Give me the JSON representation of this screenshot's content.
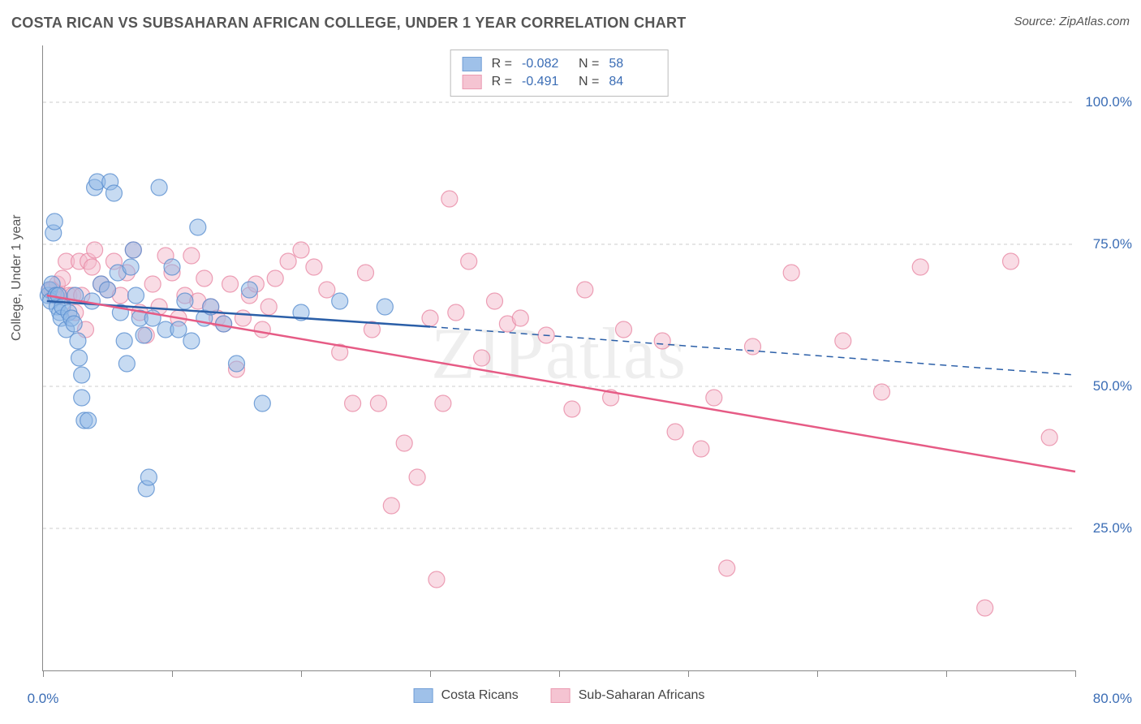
{
  "title": "COSTA RICAN VS SUBSAHARAN AFRICAN COLLEGE, UNDER 1 YEAR CORRELATION CHART",
  "source": "Source: ZipAtlas.com",
  "ylabel": "College, Under 1 year",
  "watermark": "ZIPatlas",
  "chart": {
    "type": "scatter-correlation",
    "background_color": "#ffffff",
    "grid_color": "#cccccc",
    "axis_color": "#888888",
    "label_color": "#555555",
    "tick_label_color": "#3b6db5",
    "xlim": [
      0,
      80
    ],
    "ylim": [
      0,
      110
    ],
    "yticks": [
      25,
      50,
      75,
      100
    ],
    "ytick_labels": [
      "25.0%",
      "50.0%",
      "75.0%",
      "100.0%"
    ],
    "xtick_positions": [
      0,
      10,
      20,
      30,
      40,
      50,
      60,
      70,
      80
    ],
    "xtick_labels_shown": {
      "0": "0.0%",
      "80": "80.0%"
    },
    "marker_radius": 10,
    "marker_opacity": 0.5,
    "marker_stroke_opacity": 0.8,
    "title_fontsize": 18,
    "label_fontsize": 16,
    "tick_fontsize": 17
  },
  "series": [
    {
      "name": "Costa Ricans",
      "color_fill": "#8fb7e6",
      "color_stroke": "#5a8fd0",
      "line_color": "#2b5fa8",
      "R": "-0.082",
      "N": "58",
      "trend_solid": {
        "x1": 0.3,
        "y1": 65,
        "x2": 30,
        "y2": 60.5
      },
      "trend_dash": {
        "x1": 30,
        "y1": 60.5,
        "x2": 80,
        "y2": 52
      },
      "points": [
        [
          0.4,
          66
        ],
        [
          0.5,
          67
        ],
        [
          0.6,
          65
        ],
        [
          0.7,
          68
        ],
        [
          0.8,
          77
        ],
        [
          0.9,
          79
        ],
        [
          1.0,
          66
        ],
        [
          1.1,
          64
        ],
        [
          1.2,
          66
        ],
        [
          1.3,
          63
        ],
        [
          1.4,
          62
        ],
        [
          1.5,
          64
        ],
        [
          1.8,
          60
        ],
        [
          2.0,
          63
        ],
        [
          2.2,
          62
        ],
        [
          2.4,
          61
        ],
        [
          2.5,
          66
        ],
        [
          2.7,
          58
        ],
        [
          2.8,
          55
        ],
        [
          3.0,
          52
        ],
        [
          3.0,
          48
        ],
        [
          3.2,
          44
        ],
        [
          3.5,
          44
        ],
        [
          3.8,
          65
        ],
        [
          4.0,
          85
        ],
        [
          4.2,
          86
        ],
        [
          4.5,
          68
        ],
        [
          5.0,
          67
        ],
        [
          5.2,
          86
        ],
        [
          5.5,
          84
        ],
        [
          5.8,
          70
        ],
        [
          6.0,
          63
        ],
        [
          6.3,
          58
        ],
        [
          6.5,
          54
        ],
        [
          6.8,
          71
        ],
        [
          7.0,
          74
        ],
        [
          7.2,
          66
        ],
        [
          7.5,
          62
        ],
        [
          7.8,
          59
        ],
        [
          8.0,
          32
        ],
        [
          8.2,
          34
        ],
        [
          8.5,
          62
        ],
        [
          9.0,
          85
        ],
        [
          9.5,
          60
        ],
        [
          10.0,
          71
        ],
        [
          10.5,
          60
        ],
        [
          11.0,
          65
        ],
        [
          11.5,
          58
        ],
        [
          12.0,
          78
        ],
        [
          12.5,
          62
        ],
        [
          13.0,
          64
        ],
        [
          14.0,
          61
        ],
        [
          15.0,
          54
        ],
        [
          16.0,
          67
        ],
        [
          17.0,
          47
        ],
        [
          20.0,
          63
        ],
        [
          23.0,
          65
        ],
        [
          26.5,
          64
        ]
      ]
    },
    {
      "name": "Sub-Saharan Africans",
      "color_fill": "#f4bacb",
      "color_stroke": "#e88aa5",
      "line_color": "#e65b85",
      "R": "-0.491",
      "N": "84",
      "trend_solid": {
        "x1": 0.3,
        "y1": 66,
        "x2": 80,
        "y2": 35
      },
      "trend_dash": null,
      "points": [
        [
          0.5,
          67
        ],
        [
          0.7,
          67
        ],
        [
          0.9,
          66
        ],
        [
          1.1,
          68
        ],
        [
          1.3,
          66
        ],
        [
          1.5,
          69
        ],
        [
          1.8,
          72
        ],
        [
          2.0,
          66
        ],
        [
          2.3,
          66
        ],
        [
          2.5,
          63
        ],
        [
          2.8,
          72
        ],
        [
          3.0,
          66
        ],
        [
          3.3,
          60
        ],
        [
          3.5,
          72
        ],
        [
          3.8,
          71
        ],
        [
          4.0,
          74
        ],
        [
          4.5,
          68
        ],
        [
          5.0,
          67
        ],
        [
          5.5,
          72
        ],
        [
          6.0,
          66
        ],
        [
          6.5,
          70
        ],
        [
          7.0,
          74
        ],
        [
          7.5,
          63
        ],
        [
          8.0,
          59
        ],
        [
          8.5,
          68
        ],
        [
          9.0,
          64
        ],
        [
          9.5,
          73
        ],
        [
          10.0,
          70
        ],
        [
          10.5,
          62
        ],
        [
          11.0,
          66
        ],
        [
          11.5,
          73
        ],
        [
          12.0,
          65
        ],
        [
          12.5,
          69
        ],
        [
          13.0,
          64
        ],
        [
          13.5,
          62
        ],
        [
          14.0,
          61
        ],
        [
          14.5,
          68
        ],
        [
          15.0,
          53
        ],
        [
          15.5,
          62
        ],
        [
          16.0,
          66
        ],
        [
          16.5,
          68
        ],
        [
          17.0,
          60
        ],
        [
          17.5,
          64
        ],
        [
          18.0,
          69
        ],
        [
          19.0,
          72
        ],
        [
          20.0,
          74
        ],
        [
          21.0,
          71
        ],
        [
          22.0,
          67
        ],
        [
          23.0,
          56
        ],
        [
          24.0,
          47
        ],
        [
          25.0,
          70
        ],
        [
          25.5,
          60
        ],
        [
          26.0,
          47
        ],
        [
          27.0,
          29
        ],
        [
          28.0,
          40
        ],
        [
          29.0,
          34
        ],
        [
          30.0,
          62
        ],
        [
          30.5,
          16
        ],
        [
          31.0,
          47
        ],
        [
          31.5,
          83
        ],
        [
          32.0,
          63
        ],
        [
          33.0,
          72
        ],
        [
          34.0,
          55
        ],
        [
          35.0,
          65
        ],
        [
          36.0,
          61
        ],
        [
          37.0,
          62
        ],
        [
          39.0,
          59
        ],
        [
          41.0,
          46
        ],
        [
          42.0,
          67
        ],
        [
          44.0,
          48
        ],
        [
          45.0,
          60
        ],
        [
          48.0,
          58
        ],
        [
          49.0,
          42
        ],
        [
          51.0,
          39
        ],
        [
          52.0,
          48
        ],
        [
          53.0,
          18
        ],
        [
          55.0,
          57
        ],
        [
          58.0,
          70
        ],
        [
          62.0,
          58
        ],
        [
          65.0,
          49
        ],
        [
          68.0,
          71
        ],
        [
          73.0,
          11
        ],
        [
          75.0,
          72
        ],
        [
          78.0,
          41
        ]
      ]
    }
  ],
  "stats_labels": {
    "R": "R =",
    "N": "N ="
  },
  "legend": {
    "item1": "Costa Ricans",
    "item2": "Sub-Saharan Africans"
  }
}
